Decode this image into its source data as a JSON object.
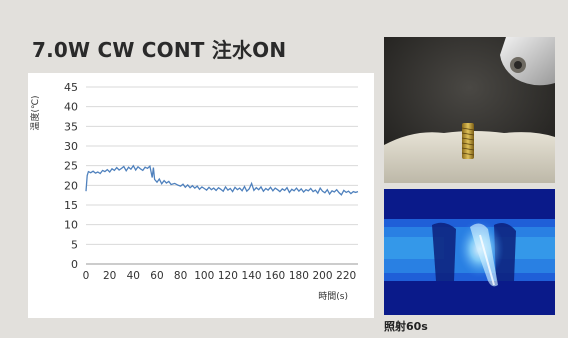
{
  "title": "7.0W CW CONT 注水ON",
  "caption": "照射60s",
  "chart_data": {
    "type": "line",
    "ylabel": "温度(℃)",
    "xlabel": "時間(s)",
    "xlim": [
      0,
      230
    ],
    "ylim": [
      0,
      45
    ],
    "x_ticks": [
      0,
      20,
      40,
      60,
      80,
      100,
      120,
      140,
      160,
      180,
      200,
      220
    ],
    "y_ticks": [
      0,
      5,
      10,
      15,
      20,
      25,
      30,
      35,
      40,
      45
    ],
    "grid": true,
    "color": "#4f81bd",
    "x": [
      0,
      1,
      2,
      4,
      6,
      8,
      10,
      12,
      14,
      16,
      18,
      20,
      22,
      24,
      26,
      28,
      30,
      32,
      34,
      36,
      38,
      40,
      42,
      44,
      46,
      48,
      50,
      52,
      54,
      56,
      57,
      58,
      60,
      62,
      64,
      66,
      68,
      70,
      72,
      75,
      78,
      80,
      82,
      84,
      86,
      88,
      90,
      92,
      94,
      96,
      98,
      100,
      102,
      104,
      106,
      108,
      110,
      112,
      114,
      116,
      118,
      120,
      122,
      124,
      126,
      128,
      130,
      132,
      134,
      136,
      138,
      140,
      142,
      144,
      146,
      148,
      150,
      152,
      154,
      156,
      158,
      160,
      162,
      164,
      166,
      168,
      170,
      172,
      174,
      176,
      178,
      180,
      182,
      184,
      186,
      188,
      190,
      192,
      194,
      196,
      198,
      200,
      202,
      204,
      206,
      208,
      210,
      212,
      214,
      216,
      218,
      220,
      222,
      224,
      226,
      228,
      230
    ],
    "values": [
      18.5,
      22.5,
      23.5,
      23.2,
      23.6,
      23.1,
      23.4,
      23.0,
      23.8,
      23.5,
      24.0,
      23.4,
      24.2,
      23.8,
      24.5,
      23.9,
      24.3,
      24.8,
      23.7,
      24.6,
      24.1,
      25.0,
      23.9,
      24.7,
      24.2,
      23.8,
      24.6,
      24.3,
      24.9,
      22.0,
      24.5,
      21.5,
      20.8,
      21.6,
      20.4,
      21.2,
      20.6,
      21.0,
      20.2,
      20.5,
      20.0,
      19.8,
      20.3,
      19.5,
      20.1,
      19.4,
      19.9,
      19.3,
      19.8,
      19.0,
      19.6,
      19.2,
      18.8,
      19.5,
      18.9,
      19.3,
      18.7,
      19.4,
      19.0,
      18.5,
      19.6,
      18.8,
      19.2,
      18.4,
      19.5,
      18.9,
      19.3,
      18.6,
      19.7,
      18.5,
      19.1,
      20.5,
      18.7,
      19.4,
      18.9,
      19.6,
      18.5,
      19.2,
      18.8,
      19.5,
      18.6,
      19.3,
      18.9,
      18.4,
      19.1,
      18.7,
      19.4,
      18.2,
      19.0,
      18.6,
      19.3,
      18.5,
      19.1,
      18.3,
      18.9,
      18.6,
      19.2,
      18.4,
      18.8,
      18.0,
      19.3,
      18.5,
      18.1,
      18.9,
      17.8,
      18.6,
      18.3,
      18.9,
      18.1,
      17.6,
      18.7,
      18.2,
      18.5,
      17.9,
      18.4,
      18.2,
      18.4
    ]
  },
  "icons": {
    "top_photo": "dental-implant-photo",
    "bottom_photo": "thermal-image-photo"
  }
}
